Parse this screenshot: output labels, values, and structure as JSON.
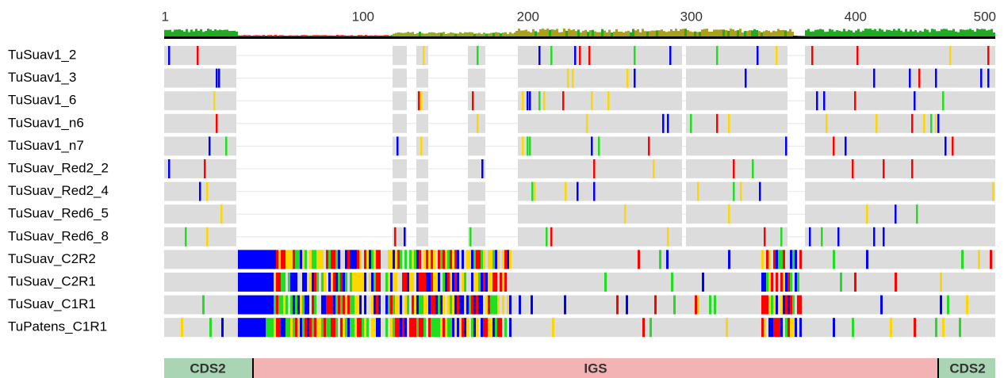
{
  "ruler": [
    "1",
    "100",
    "200",
    "300",
    "400",
    "500"
  ],
  "rows": [
    "TuSuav1_2",
    "TuSuav1_3",
    "TuSuav1_6",
    "TuSuav1_n6",
    "TuSuav1_n7",
    "TuSuav_Red2_2",
    "TuSuav_Red2_4",
    "TuSuav_Red6_5",
    "TuSuav_Red6_8",
    "TuSuav_C2R2",
    "TuSuav_C2R1",
    "TuSuav_C1R1",
    "TuPatens_C1R1"
  ],
  "annotations": [
    {
      "label": "CDS2"
    },
    {
      "label": "IGS"
    },
    {
      "label": "CDS2"
    }
  ]
}
